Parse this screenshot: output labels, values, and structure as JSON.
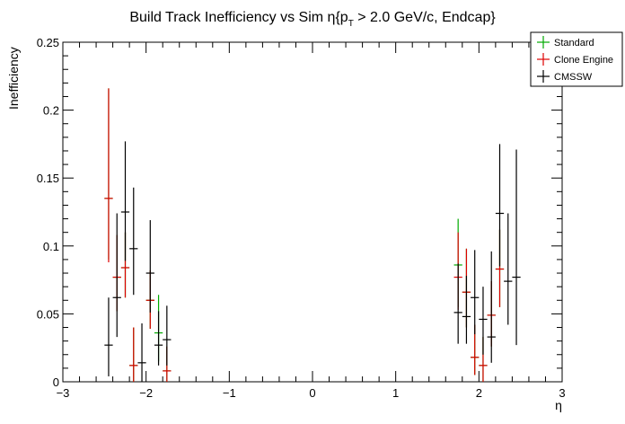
{
  "chart_data": {
    "type": "scatter",
    "title": "Build Track Inefficiency vs Sim η{p",
    "title_sub": "T",
    "title_rest": " > 2.0 GeV/c, Endcap}",
    "xlabel": "η",
    "ylabel": "Inefficiency",
    "xlim": [
      -3,
      3
    ],
    "ylim": [
      0,
      0.25
    ],
    "x_ticks": [
      -3,
      -2,
      -1,
      0,
      1,
      2,
      3
    ],
    "x_tick_labels": [
      "−3",
      "−2",
      "−1",
      "0",
      "1",
      "2",
      "3"
    ],
    "y_ticks": [
      0,
      0.05,
      0.1,
      0.15,
      0.2,
      0.25
    ],
    "y_tick_labels": [
      "0",
      "0.05",
      "0.1",
      "0.15",
      "0.2",
      "0.25"
    ],
    "grid": false,
    "legend_position": "top-right",
    "series": [
      {
        "name": "Standard",
        "color": "#00aa00",
        "points": [
          {
            "x": -2.45,
            "y": 0.135,
            "ylo": 0.09,
            "yhi": 0.216
          },
          {
            "x": -2.35,
            "y": 0.077,
            "ylo": 0.052,
            "yhi": 0.108
          },
          {
            "x": -2.25,
            "y": 0.084,
            "ylo": 0.062,
            "yhi": 0.11
          },
          {
            "x": -2.15,
            "y": 0.012,
            "ylo": 0.0,
            "yhi": 0.04
          },
          {
            "x": -1.95,
            "y": 0.06,
            "ylo": 0.039,
            "yhi": 0.082
          },
          {
            "x": -1.85,
            "y": 0.036,
            "ylo": 0.015,
            "yhi": 0.064
          },
          {
            "x": -1.75,
            "y": 0.008,
            "ylo": 0.0,
            "yhi": 0.026
          },
          {
            "x": 1.75,
            "y": 0.086,
            "ylo": 0.055,
            "yhi": 0.12
          },
          {
            "x": 1.85,
            "y": 0.066,
            "ylo": 0.04,
            "yhi": 0.098
          },
          {
            "x": 1.95,
            "y": 0.018,
            "ylo": 0.005,
            "yhi": 0.042
          },
          {
            "x": 2.05,
            "y": 0.012,
            "ylo": 0.0,
            "yhi": 0.033
          },
          {
            "x": 2.15,
            "y": 0.049,
            "ylo": 0.026,
            "yhi": 0.074
          },
          {
            "x": 2.25,
            "y": 0.083,
            "ylo": 0.055,
            "yhi": 0.112
          }
        ]
      },
      {
        "name": "Clone Engine",
        "color": "#dd0000",
        "points": [
          {
            "x": -2.45,
            "y": 0.135,
            "ylo": 0.088,
            "yhi": 0.216
          },
          {
            "x": -2.35,
            "y": 0.077,
            "ylo": 0.052,
            "yhi": 0.108
          },
          {
            "x": -2.25,
            "y": 0.084,
            "ylo": 0.062,
            "yhi": 0.11
          },
          {
            "x": -2.15,
            "y": 0.012,
            "ylo": 0.0,
            "yhi": 0.04
          },
          {
            "x": -1.95,
            "y": 0.06,
            "ylo": 0.039,
            "yhi": 0.082
          },
          {
            "x": -1.75,
            "y": 0.008,
            "ylo": 0.0,
            "yhi": 0.026
          },
          {
            "x": 1.75,
            "y": 0.077,
            "ylo": 0.053,
            "yhi": 0.11
          },
          {
            "x": 1.85,
            "y": 0.066,
            "ylo": 0.04,
            "yhi": 0.098
          },
          {
            "x": 1.95,
            "y": 0.018,
            "ylo": 0.005,
            "yhi": 0.042
          },
          {
            "x": 2.05,
            "y": 0.012,
            "ylo": 0.0,
            "yhi": 0.033
          },
          {
            "x": 2.15,
            "y": 0.049,
            "ylo": 0.026,
            "yhi": 0.074
          },
          {
            "x": 2.25,
            "y": 0.083,
            "ylo": 0.055,
            "yhi": 0.112
          }
        ]
      },
      {
        "name": "CMSSW",
        "color": "#000000",
        "points": [
          {
            "x": -2.45,
            "y": 0.027,
            "ylo": 0.004,
            "yhi": 0.062
          },
          {
            "x": -2.35,
            "y": 0.062,
            "ylo": 0.033,
            "yhi": 0.124
          },
          {
            "x": -2.25,
            "y": 0.125,
            "ylo": 0.089,
            "yhi": 0.177
          },
          {
            "x": -2.15,
            "y": 0.098,
            "ylo": 0.064,
            "yhi": 0.143
          },
          {
            "x": -2.05,
            "y": 0.014,
            "ylo": 0.0,
            "yhi": 0.043
          },
          {
            "x": -1.95,
            "y": 0.08,
            "ylo": 0.051,
            "yhi": 0.119
          },
          {
            "x": -1.85,
            "y": 0.027,
            "ylo": 0.012,
            "yhi": 0.052
          },
          {
            "x": -1.75,
            "y": 0.031,
            "ylo": 0.012,
            "yhi": 0.056
          },
          {
            "x": 1.75,
            "y": 0.051,
            "ylo": 0.028,
            "yhi": 0.087
          },
          {
            "x": 1.85,
            "y": 0.048,
            "ylo": 0.028,
            "yhi": 0.078
          },
          {
            "x": 1.95,
            "y": 0.062,
            "ylo": 0.035,
            "yhi": 0.097
          },
          {
            "x": 2.05,
            "y": 0.046,
            "ylo": 0.02,
            "yhi": 0.07
          },
          {
            "x": 2.15,
            "y": 0.033,
            "ylo": 0.014,
            "yhi": 0.096
          },
          {
            "x": 2.25,
            "y": 0.124,
            "ylo": 0.085,
            "yhi": 0.175
          },
          {
            "x": 2.35,
            "y": 0.074,
            "ylo": 0.042,
            "yhi": 0.124
          },
          {
            "x": 2.45,
            "y": 0.077,
            "ylo": 0.027,
            "yhi": 0.171
          }
        ]
      }
    ]
  }
}
